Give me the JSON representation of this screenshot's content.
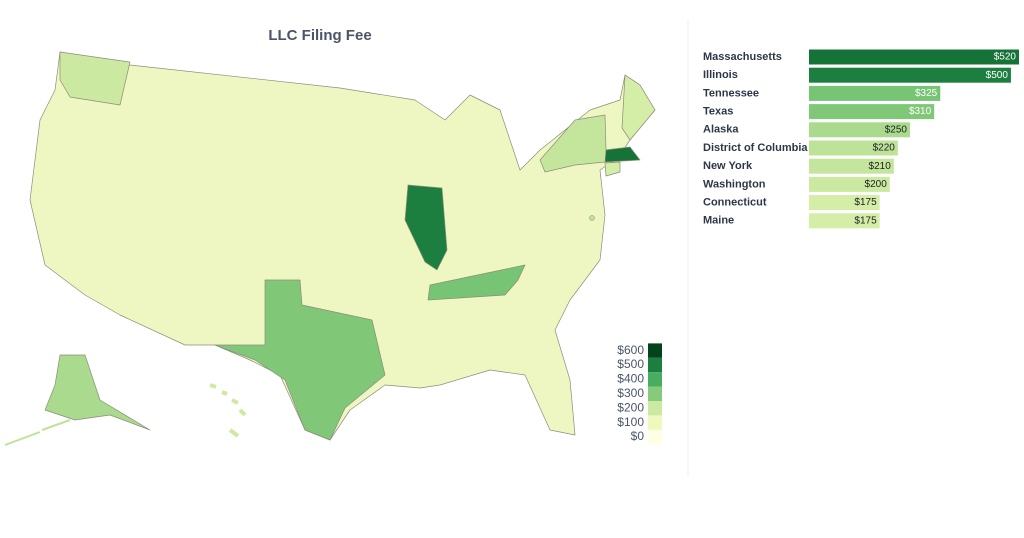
{
  "chart_data": {
    "type": "bar",
    "title": "LLC Filing Fee",
    "categories": [
      "Massachusetts",
      "Illinois",
      "Tennessee",
      "Texas",
      "Alaska",
      "District of Columbia",
      "New York",
      "Washington",
      "Connecticut",
      "Maine"
    ],
    "values": [
      520,
      500,
      325,
      310,
      250,
      220,
      210,
      200,
      175,
      175
    ],
    "value_labels": [
      "$520",
      "$500",
      "$325",
      "$310",
      "$250",
      "$220",
      "$210",
      "$200",
      "$175",
      "$175"
    ],
    "xlim": [
      0,
      520
    ],
    "colorbar_ticks": [
      {
        "value": 0,
        "label": "$0"
      },
      {
        "value": 100,
        "label": "$100"
      },
      {
        "value": 200,
        "label": "$200"
      },
      {
        "value": 300,
        "label": "$300"
      },
      {
        "value": 400,
        "label": "$400"
      },
      {
        "value": 500,
        "label": "$500"
      },
      {
        "value": 600,
        "label": "$600"
      }
    ],
    "colorbar_colors": [
      "#ffffe5",
      "#f0f9bd",
      "#cbe9a0",
      "#86cb7b",
      "#47ae5f",
      "#1c7f3f",
      "#00441b"
    ]
  }
}
